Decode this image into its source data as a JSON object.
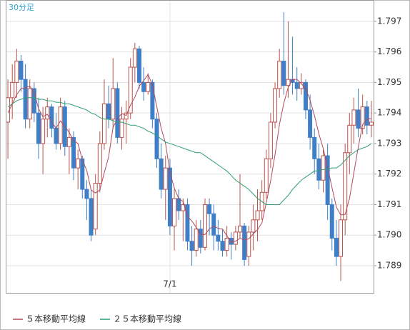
{
  "chart_data": {
    "type": "candlestick",
    "title": "30分足",
    "categories": [
      null,
      null,
      null,
      null,
      null,
      null,
      null,
      null,
      null,
      null,
      null,
      null,
      null,
      null,
      null,
      null,
      null,
      null,
      null,
      null,
      null,
      null,
      null,
      null,
      null,
      null,
      null,
      null,
      null,
      null,
      null,
      null,
      null,
      null,
      null,
      null,
      null,
      "7/1",
      null,
      null,
      null,
      null,
      null,
      null,
      null,
      null,
      null,
      null,
      null,
      null,
      null,
      null,
      null,
      null,
      null,
      null,
      null,
      null,
      null,
      null,
      null,
      null,
      null,
      null,
      null,
      null,
      null,
      null,
      null,
      null,
      null,
      null,
      null,
      null,
      null,
      null,
      null,
      null,
      null,
      null,
      null,
      null,
      null,
      null
    ],
    "open": [
      1.7937,
      1.7945,
      1.795,
      1.7957,
      1.7951,
      1.7938,
      1.7948,
      1.794,
      1.793,
      1.7938,
      1.7942,
      1.7935,
      1.793,
      1.7942,
      1.7929,
      1.7932,
      1.7922,
      1.7925,
      1.7915,
      1.7912,
      1.7902,
      1.7917,
      1.793,
      1.7943,
      1.7938,
      1.7948,
      1.7932,
      1.7938,
      1.794,
      1.7955,
      1.7961,
      1.795,
      1.7947,
      1.795,
      1.7938,
      1.7925,
      1.7915,
      1.7922,
      1.7903,
      1.7912,
      1.7908,
      1.791,
      1.7898,
      1.7895,
      1.7902,
      1.7896,
      1.791,
      1.7907,
      1.79,
      1.7898,
      1.7895,
      1.7899,
      1.7897,
      1.7901,
      1.7903,
      1.7893,
      1.7901,
      1.7905,
      1.7908,
      1.7914,
      1.7925,
      1.7937,
      1.7948,
      1.7957,
      1.7949,
      1.7951,
      1.795,
      1.7948,
      1.795,
      1.7941,
      1.7932,
      1.7925,
      1.7918,
      1.7926,
      1.791,
      1.7899,
      1.7893,
      1.7905,
      1.7927,
      1.7936,
      1.7941,
      1.7935,
      1.7942,
      1.7936
    ],
    "high": [
      1.7951,
      1.7956,
      1.7961,
      1.7959,
      1.7956,
      1.7951,
      1.795,
      1.7945,
      1.7942,
      1.7945,
      1.7943,
      1.794,
      1.7945,
      1.7944,
      1.7935,
      1.7934,
      1.7928,
      1.7926,
      1.7918,
      1.7915,
      1.792,
      1.7934,
      1.7951,
      1.7949,
      1.7958,
      1.795,
      1.7942,
      1.7944,
      1.7958,
      1.7963,
      1.7962,
      1.7955,
      1.7953,
      1.7951,
      1.794,
      1.793,
      1.7926,
      1.7925,
      1.7915,
      1.7915,
      1.7912,
      1.7912,
      1.7903,
      1.7905,
      1.7905,
      1.7912,
      1.7912,
      1.791,
      1.7905,
      1.7902,
      1.7903,
      1.7901,
      1.7903,
      1.792,
      1.7904,
      1.7903,
      1.791,
      1.7915,
      1.7918,
      1.7928,
      1.794,
      1.795,
      1.7961,
      1.7973,
      1.797,
      1.7965,
      1.7955,
      1.7953,
      1.7951,
      1.7946,
      1.7935,
      1.793,
      1.7928,
      1.793,
      1.7912,
      1.7905,
      1.791,
      1.793,
      1.794,
      1.7945,
      1.7948,
      1.7946,
      1.7944,
      1.7944
    ],
    "low": [
      1.7925,
      1.7938,
      1.7945,
      1.7947,
      1.7935,
      1.7935,
      1.7937,
      1.7925,
      1.792,
      1.7932,
      1.7932,
      1.7928,
      1.7928,
      1.7926,
      1.792,
      1.7918,
      1.7915,
      1.7912,
      1.7905,
      1.7898,
      1.79,
      1.7914,
      1.7928,
      1.7935,
      1.7935,
      1.793,
      1.7928,
      1.793,
      1.7938,
      1.795,
      1.7948,
      1.7944,
      1.7946,
      1.7935,
      1.7922,
      1.7912,
      1.7905,
      1.79,
      1.7895,
      1.7905,
      1.7898,
      1.7895,
      1.789,
      1.7893,
      1.7894,
      1.7895,
      1.79,
      1.7895,
      1.7895,
      1.7893,
      1.7893,
      1.7892,
      1.7895,
      1.7899,
      1.789,
      1.789,
      1.7895,
      1.7898,
      1.7905,
      1.7912,
      1.7922,
      1.7935,
      1.7945,
      1.7946,
      1.7945,
      1.7946,
      1.7944,
      1.7946,
      1.7938,
      1.7928,
      1.792,
      1.7915,
      1.7914,
      1.7905,
      1.7895,
      1.789,
      1.7885,
      1.79,
      1.792,
      1.793,
      1.7932,
      1.7933,
      1.7933,
      1.7932
    ],
    "close": [
      1.7945,
      1.795,
      1.7957,
      1.7951,
      1.7938,
      1.7948,
      1.794,
      1.793,
      1.7938,
      1.7942,
      1.7935,
      1.793,
      1.7942,
      1.7929,
      1.7932,
      1.7922,
      1.7925,
      1.7915,
      1.7912,
      1.79,
      1.7917,
      1.793,
      1.7943,
      1.7938,
      1.7948,
      1.7932,
      1.7938,
      1.794,
      1.7955,
      1.7961,
      1.795,
      1.7947,
      1.795,
      1.7938,
      1.7925,
      1.7915,
      1.7922,
      1.7903,
      1.7912,
      1.7908,
      1.791,
      1.7898,
      1.7895,
      1.7902,
      1.7896,
      1.791,
      1.7907,
      1.79,
      1.7898,
      1.7895,
      1.7899,
      1.7897,
      1.7901,
      1.7903,
      1.7892,
      1.7901,
      1.7905,
      1.7908,
      1.7914,
      1.7925,
      1.7937,
      1.7948,
      1.7957,
      1.7949,
      1.7951,
      1.795,
      1.7948,
      1.795,
      1.7941,
      1.7932,
      1.7925,
      1.7918,
      1.7926,
      1.791,
      1.7899,
      1.7893,
      1.7905,
      1.7927,
      1.7936,
      1.7941,
      1.7935,
      1.7942,
      1.7936,
      1.7937
    ],
    "up_color": "#b9524c",
    "down_color": "#3f7fc8",
    "series": [
      {
        "name": "５本移動平均線",
        "color": "#b04a5a",
        "values": [
          1.794,
          1.7943,
          1.7946,
          1.7948,
          1.79482,
          1.79488,
          1.79468,
          1.79414,
          1.79388,
          1.79396,
          1.7937,
          1.7935,
          1.79374,
          1.79356,
          1.79336,
          1.7931,
          1.793,
          1.79246,
          1.79212,
          1.79148,
          1.79138,
          1.79148,
          1.79204,
          1.79256,
          1.79352,
          1.79382,
          1.79398,
          1.79392,
          1.79426,
          1.79452,
          1.79488,
          1.79506,
          1.79526,
          1.79492,
          1.7942,
          1.7935,
          1.793,
          1.79206,
          1.79154,
          1.7912,
          1.7911,
          1.79062,
          1.79046,
          1.79026,
          1.79002,
          1.79002,
          1.7902,
          1.7903,
          1.79022,
          1.7902,
          1.78998,
          1.78978,
          1.7898,
          1.7899,
          1.78984,
          1.78988,
          1.79004,
          1.79018,
          1.7904,
          1.79106,
          1.79178,
          1.79264,
          1.79362,
          1.79432,
          1.79484,
          1.7951,
          1.7951,
          1.79496,
          1.7948,
          1.79442,
          1.79392,
          1.79332,
          1.79284,
          1.79222,
          1.79156,
          1.79092,
          1.79066,
          1.79068,
          1.7912,
          1.79204,
          1.79288,
          1.79362,
          1.7938,
          1.79382
        ]
      },
      {
        "name": "２５本移動平均線",
        "color": "#2e9e72",
        "values": [
          1.7942,
          1.7943,
          1.7944,
          1.79445,
          1.7945,
          1.7945,
          1.7945,
          1.79445,
          1.79445,
          1.7944,
          1.7944,
          1.79435,
          1.79435,
          1.7943,
          1.7943,
          1.79425,
          1.7942,
          1.79415,
          1.7941,
          1.794,
          1.79395,
          1.79385,
          1.7938,
          1.7938,
          1.79375,
          1.7937,
          1.7937,
          1.79365,
          1.7936,
          1.7936,
          1.79355,
          1.7935,
          1.7934,
          1.79335,
          1.79325,
          1.79315,
          1.79305,
          1.793,
          1.79295,
          1.7929,
          1.79285,
          1.7928,
          1.79275,
          1.7927,
          1.7927,
          1.7926,
          1.7925,
          1.7924,
          1.7923,
          1.7922,
          1.7921,
          1.79195,
          1.7918,
          1.7917,
          1.7916,
          1.7915,
          1.79135,
          1.7912,
          1.7911,
          1.791,
          1.791,
          1.791,
          1.791,
          1.79115,
          1.7913,
          1.7915,
          1.79165,
          1.7918,
          1.7919,
          1.792,
          1.7921,
          1.7921,
          1.79215,
          1.79215,
          1.7922,
          1.7922,
          1.7923,
          1.79245,
          1.7926,
          1.7927,
          1.7928,
          1.79285,
          1.7929,
          1.793
        ]
      }
    ],
    "ylim": [
      1.78811,
      1.7977
    ],
    "yticks": [
      1.789,
      {
        "value": 1.79,
        "label": "1.790"
      },
      1.791,
      1.792,
      1.793,
      1.794,
      1.795,
      1.796,
      1.797
    ],
    "grid": true
  }
}
